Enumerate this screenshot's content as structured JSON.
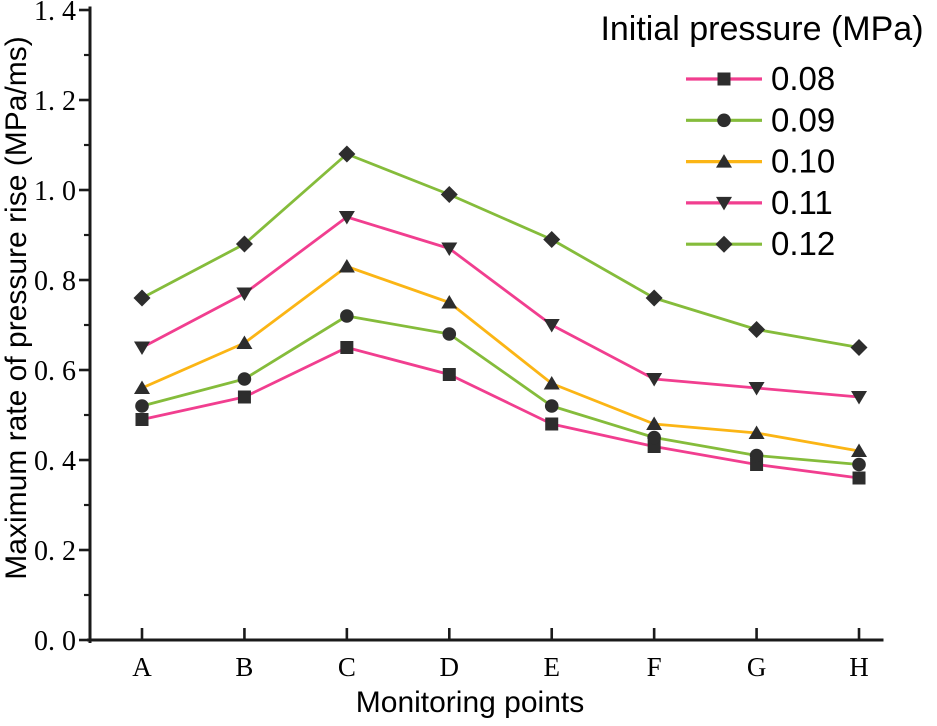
{
  "figure": {
    "background": "#FFFFFF"
  },
  "chart_data": {
    "type": "line",
    "title": "",
    "categories": [
      "A",
      "B",
      "C",
      "D",
      "E",
      "F",
      "G",
      "H"
    ],
    "series": [
      {
        "name": "0.08",
        "color": "#F13E8F",
        "marker": "square",
        "values": [
          0.49,
          0.54,
          0.65,
          0.59,
          0.48,
          0.43,
          0.39,
          0.36
        ]
      },
      {
        "name": "0.09",
        "color": "#85BC3B",
        "marker": "circle",
        "values": [
          0.52,
          0.58,
          0.72,
          0.68,
          0.52,
          0.45,
          0.41,
          0.39
        ]
      },
      {
        "name": "0.10",
        "color": "#FBB515",
        "marker": "triangle-up",
        "values": [
          0.56,
          0.66,
          0.83,
          0.75,
          0.57,
          0.48,
          0.46,
          0.42
        ]
      },
      {
        "name": "0.11",
        "color": "#F13E8F",
        "marker": "triangle-down",
        "values": [
          0.65,
          0.77,
          0.94,
          0.87,
          0.7,
          0.58,
          0.56,
          0.54
        ]
      },
      {
        "name": "0.12",
        "color": "#85BC3B",
        "marker": "diamond",
        "values": [
          0.76,
          0.88,
          1.08,
          0.99,
          0.89,
          0.76,
          0.69,
          0.65
        ]
      }
    ],
    "xlabel": "Monitoring points",
    "ylabel": "Maximum rate of pressure rise (MPa/ms)",
    "ylim": [
      0.0,
      1.4
    ],
    "y_major_step": 0.2,
    "y_minor_step": 0.1,
    "y_tick_labels": [
      "0. 0",
      "0. 2",
      "0. 4",
      "0. 6",
      "0. 8",
      "1. 0",
      "1. 2",
      "1. 4"
    ],
    "x_tick_labels": [
      "A",
      "B",
      "C",
      "D",
      "E",
      "F",
      "G",
      "H"
    ],
    "legend": {
      "title": "Initial pressure (MPa)",
      "position": "top-right"
    },
    "marker_color": "#2D2D2D",
    "axis_color": "#1A1A1A",
    "text_color": "#000000",
    "grid": false
  }
}
